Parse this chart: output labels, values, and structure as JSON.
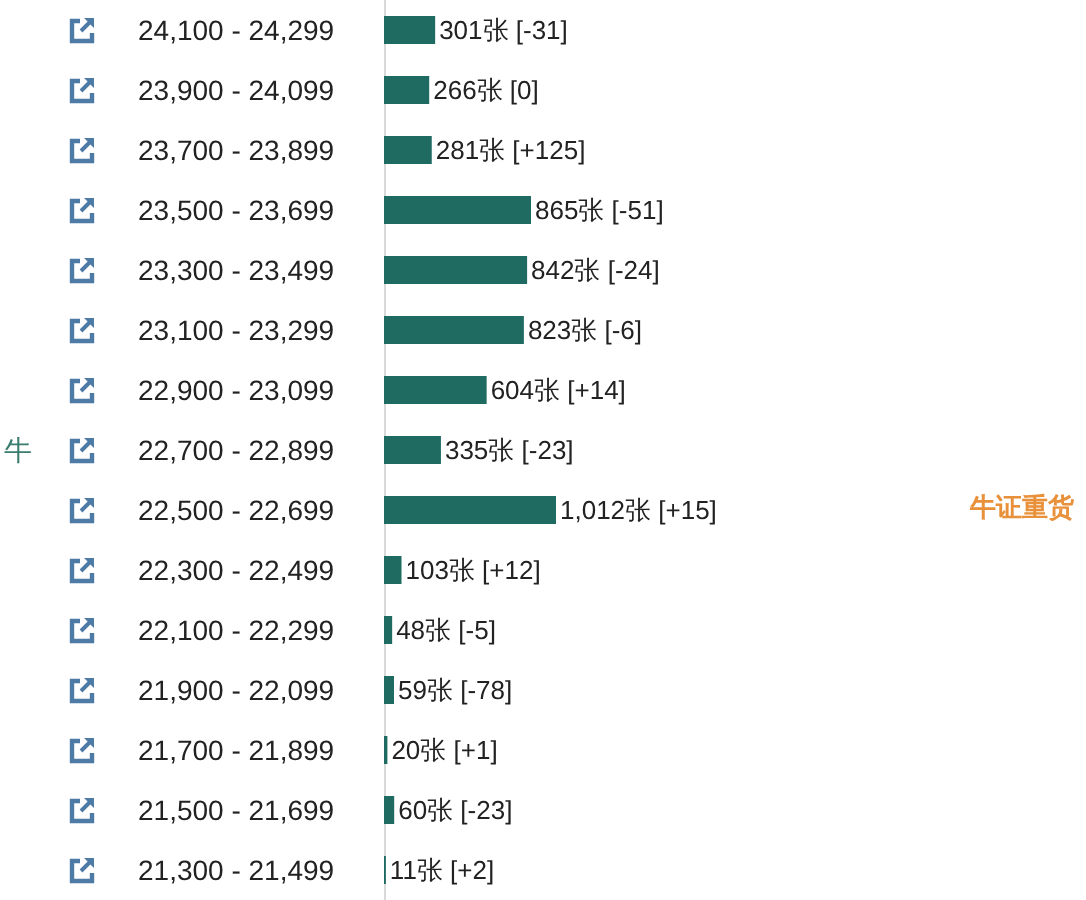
{
  "chart_data": {
    "type": "bar",
    "orientation": "horizontal",
    "ylabel": "牛",
    "categories": [
      "24,100 - 24,299",
      "23,900 - 24,099",
      "23,700 - 23,899",
      "23,500 - 23,699",
      "23,300 - 23,499",
      "23,100 - 23,299",
      "22,900 - 23,099",
      "22,700 - 22,899",
      "22,500 - 22,699",
      "22,300 - 22,499",
      "22,100 - 22,299",
      "21,900 - 22,099",
      "21,700 - 21,899",
      "21,500 - 21,699",
      "21,300 - 21,499"
    ],
    "values": [
      301,
      266,
      281,
      865,
      842,
      823,
      604,
      335,
      1012,
      103,
      48,
      59,
      20,
      60,
      11
    ],
    "value_labels": [
      "301张 [-31]",
      "266张 [0]",
      "281张 [+125]",
      "865张 [-51]",
      "842张 [-24]",
      "823张 [-6]",
      "604张 [+14]",
      "335张 [-23]",
      "1,012张 [+15]",
      "103张 [+12]",
      "48张 [-5]",
      "59张 [-78]",
      "20张 [+1]",
      "60张 [-23]",
      "11张 [+2]"
    ],
    "color": "#1f6b62",
    "tick_labels": "y",
    "grid": false,
    "annotations": [
      "牛证重货"
    ]
  }
}
